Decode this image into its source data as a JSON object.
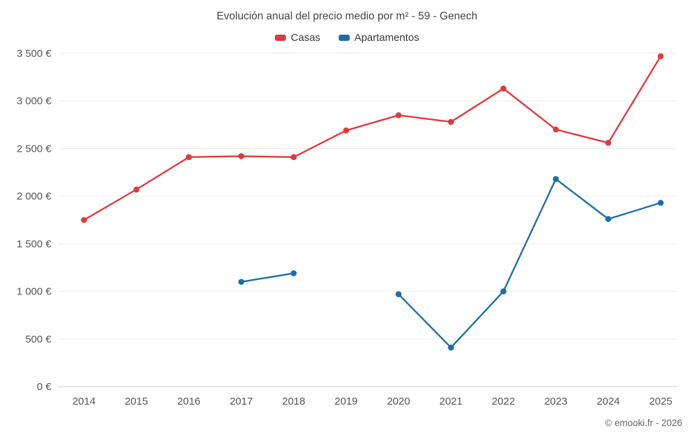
{
  "title": "Evolución anual del precio medio por m² - 59 - Genech",
  "footer": {
    "copyright": "© emooki.fr - 2026"
  },
  "chart_data": {
    "type": "line",
    "title": "Evolución anual del precio medio por m² - 59 - Genech",
    "categories": [
      "2014",
      "2015",
      "2016",
      "2017",
      "2018",
      "2019",
      "2020",
      "2021",
      "2022",
      "2023",
      "2024",
      "2025"
    ],
    "series": [
      {
        "name": "Casas",
        "color": "#e0393e",
        "values": [
          1750,
          2070,
          2410,
          2420,
          2410,
          2690,
          2850,
          2780,
          3130,
          2700,
          2560,
          3470
        ]
      },
      {
        "name": "Apartamentos",
        "color": "#1b6fa5",
        "values": [
          null,
          null,
          null,
          1100,
          1190,
          null,
          970,
          410,
          1000,
          2180,
          1760,
          1930
        ]
      }
    ],
    "xlabel": "",
    "ylabel": "",
    "ylim": [
      0,
      3500
    ],
    "ytick_step": 500,
    "ytick_labels": [
      "0 €",
      "500 €",
      "1 000 €",
      "1 500 €",
      "2 000 €",
      "2 500 €",
      "3 000 €",
      "3 500 €"
    ],
    "grid": true,
    "legend_position": "top"
  }
}
